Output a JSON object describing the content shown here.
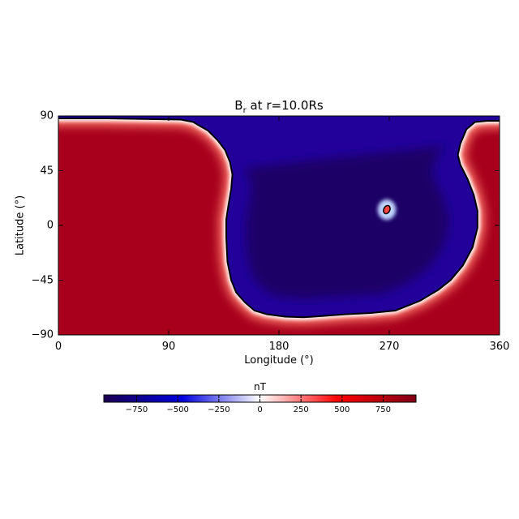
{
  "chart_data": {
    "type": "heatmap",
    "title": "B_r at r=10.0Rs",
    "title_main": "B",
    "title_sub": "r",
    "title_rest": " at r=10.0Rs",
    "xlabel": "Longitude (°)",
    "ylabel": "Latitude (°)",
    "xlim": [
      0,
      360
    ],
    "ylim": [
      -90,
      90
    ],
    "x_ticks": [
      0,
      90,
      180,
      270,
      360
    ],
    "x_tick_labels": [
      "0",
      "90",
      "180",
      "270",
      "360"
    ],
    "y_ticks": [
      90,
      45,
      0,
      -45,
      -90
    ],
    "y_tick_labels": [
      "90",
      "45",
      "0",
      "−45",
      "−90"
    ],
    "colormap": "blue-white-red (diverging)",
    "colorbar": {
      "label": "nT",
      "range": [
        -950,
        950
      ],
      "ticks": [
        -750,
        -500,
        -250,
        0,
        250,
        500,
        750
      ],
      "tick_labels": [
        "−750",
        "−500",
        "−250",
        "0",
        "250",
        "500",
        "750"
      ],
      "colors": [
        "#1a0050",
        "#0000dd",
        "#ffffff",
        "#ff0000",
        "#800015"
      ]
    },
    "regions": [
      {
        "polarity": "negative",
        "approx_value": -900,
        "description": "large negative-polarity region centred near lon 220°, lat 0°"
      },
      {
        "polarity": "positive",
        "approx_value": 900,
        "description": "positive polarity elsewhere"
      },
      {
        "polarity": "positive",
        "approx_value": 400,
        "description": "small positive island near lon 268°, lat 13°"
      }
    ],
    "contour": {
      "level": 0,
      "color": "#000000"
    },
    "neutral_line": [
      [
        0,
        88
      ],
      [
        20,
        88
      ],
      [
        40,
        88
      ],
      [
        70,
        87.5
      ],
      [
        100,
        87
      ],
      [
        110,
        85
      ],
      [
        115,
        82
      ],
      [
        122,
        78
      ],
      [
        130,
        70
      ],
      [
        136,
        62
      ],
      [
        140,
        52
      ],
      [
        142,
        42
      ],
      [
        141,
        30
      ],
      [
        139,
        18
      ],
      [
        137,
        5
      ],
      [
        137,
        -10
      ],
      [
        138,
        -30
      ],
      [
        141,
        -45
      ],
      [
        145,
        -55
      ],
      [
        152,
        -63
      ],
      [
        160,
        -70
      ],
      [
        170,
        -73
      ],
      [
        185,
        -75
      ],
      [
        200,
        -75.5
      ],
      [
        215,
        -74.5
      ],
      [
        235,
        -73
      ],
      [
        255,
        -72
      ],
      [
        275,
        -70
      ],
      [
        295,
        -62
      ],
      [
        310,
        -53
      ],
      [
        320,
        -45
      ],
      [
        330,
        -33
      ],
      [
        338,
        -18
      ],
      [
        342,
        -2
      ],
      [
        342,
        12
      ],
      [
        339,
        25
      ],
      [
        334,
        38
      ],
      [
        328,
        50
      ],
      [
        326,
        58
      ],
      [
        328,
        67
      ],
      [
        333,
        79
      ],
      [
        340,
        85
      ],
      [
        350,
        86
      ],
      [
        360,
        86
      ]
    ],
    "island_contour": {
      "center": [
        268,
        13
      ],
      "radius_lon": 2.5,
      "radius_lat": 3.5
    }
  }
}
